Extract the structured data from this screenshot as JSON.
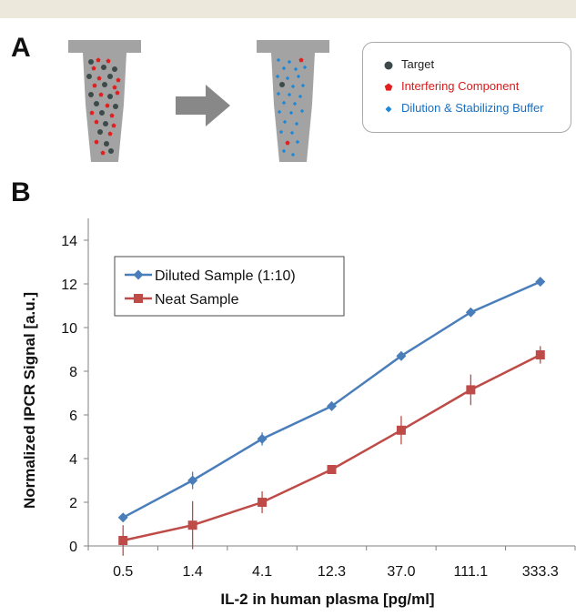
{
  "panel_a": {
    "letter": "A",
    "legend": [
      {
        "label": "Target",
        "color": "#3d4a4a",
        "shape": "circle"
      },
      {
        "label": "Interfering Component",
        "color": "#e02020",
        "shape": "pentagon"
      },
      {
        "label": "Dilution & Stabilizing Buffer",
        "color": "#1e88d8",
        "shape": "diamond"
      }
    ],
    "tube_color": "#a3a3a3",
    "arrow_color": "#888888"
  },
  "panel_b": {
    "letter": "B"
  },
  "chart_data": {
    "type": "line",
    "title": "",
    "xlabel": "IL-2 in human plasma [pg/ml]",
    "ylabel": "Normalized IPCR Signal [a.u.]",
    "categories": [
      "0.5",
      "1.4",
      "4.1",
      "12.3",
      "37.0",
      "111.1",
      "333.3"
    ],
    "ylim": [
      0,
      15
    ],
    "yticks": [
      0,
      2,
      4,
      6,
      8,
      10,
      12,
      14
    ],
    "grid": false,
    "legend_position": "top-left",
    "series": [
      {
        "name": "Diluted Sample (1:10)",
        "color": "#4a7ebb",
        "marker": "diamond",
        "values": [
          1.3,
          3.0,
          4.9,
          6.4,
          8.7,
          10.7,
          12.1
        ],
        "errors": [
          0.2,
          0.4,
          0.3,
          0.1,
          0.15,
          0.15,
          0.1
        ]
      },
      {
        "name": "Neat Sample",
        "color": "#be4b48",
        "marker": "square",
        "values": [
          0.25,
          0.95,
          2.0,
          3.5,
          5.3,
          7.15,
          8.75
        ],
        "errors": [
          0.7,
          1.1,
          0.5,
          0.05,
          0.65,
          0.7,
          0.4
        ]
      }
    ]
  }
}
